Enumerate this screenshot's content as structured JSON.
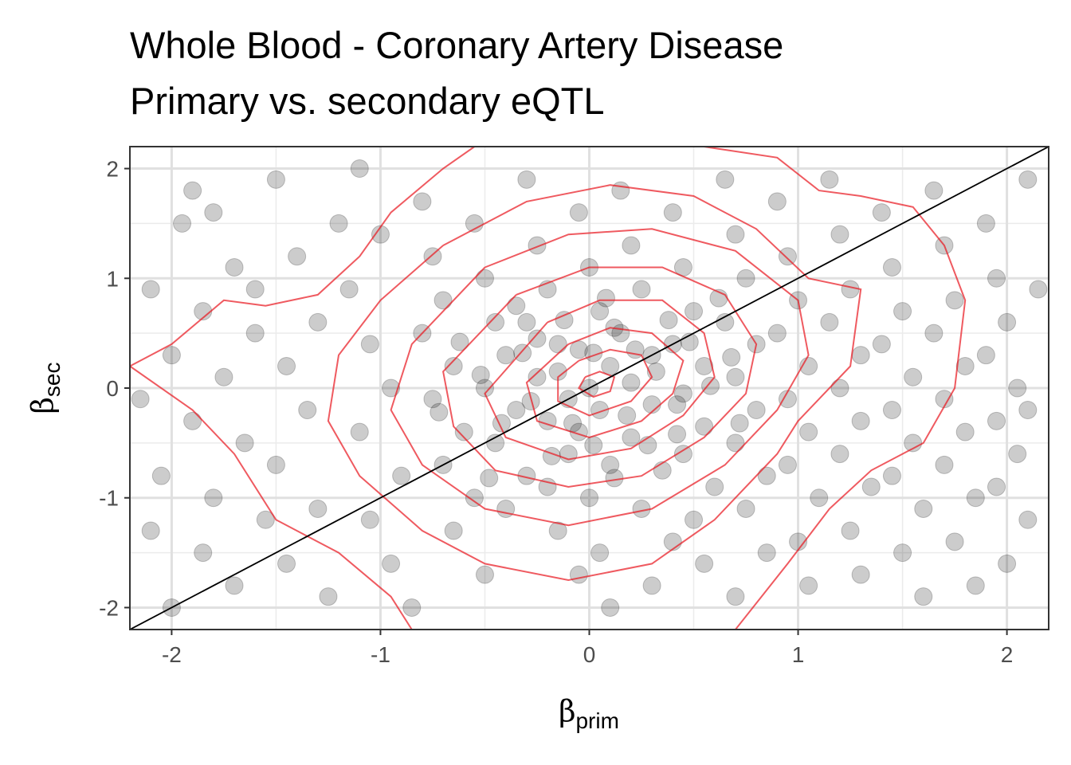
{
  "chart_data": {
    "type": "scatter",
    "title_lines": [
      "Whole Blood - Coronary Artery Disease",
      "Primary vs. secondary eQTL"
    ],
    "xlabel": {
      "symbol": "β",
      "subscript": "prim"
    },
    "ylabel": {
      "symbol": "β",
      "subscript": "sec"
    },
    "xlim": [
      -2.2,
      2.2
    ],
    "ylim": [
      -2.2,
      2.2
    ],
    "xticks": [
      -2,
      -1,
      0,
      1,
      2
    ],
    "yticks": [
      -2,
      -1,
      0,
      1,
      2
    ],
    "xtick_labels": [
      "-2",
      "-1",
      "0",
      "1",
      "2"
    ],
    "ytick_labels": [
      "-2",
      "-1",
      "0",
      "1",
      "2"
    ],
    "grid": true,
    "point_color": "#000000",
    "point_opacity": 0.2,
    "contour_color": "#e8141d",
    "reference_line": {
      "slope": 1,
      "intercept": 0,
      "color": "#000000"
    },
    "points": [
      [
        -1.9,
        1.8
      ],
      [
        -1.8,
        1.6
      ],
      [
        -1.95,
        1.5
      ],
      [
        -1.7,
        1.1
      ],
      [
        -2.1,
        0.9
      ],
      [
        -1.85,
        0.7
      ],
      [
        -1.6,
        0.5
      ],
      [
        -2.0,
        0.3
      ],
      [
        -1.75,
        0.1
      ],
      [
        -2.15,
        -0.1
      ],
      [
        -1.9,
        -0.3
      ],
      [
        -1.65,
        -0.5
      ],
      [
        -2.05,
        -0.8
      ],
      [
        -1.8,
        -1.0
      ],
      [
        -2.1,
        -1.3
      ],
      [
        -1.85,
        -1.5
      ],
      [
        -1.7,
        -1.8
      ],
      [
        -2.0,
        -2.0
      ],
      [
        -1.55,
        -1.2
      ],
      [
        -1.6,
        0.9
      ],
      [
        -1.5,
        1.9
      ],
      [
        -1.4,
        1.2
      ],
      [
        -1.3,
        0.6
      ],
      [
        -1.45,
        0.2
      ],
      [
        -1.35,
        -0.2
      ],
      [
        -1.5,
        -0.7
      ],
      [
        -1.3,
        -1.1
      ],
      [
        -1.45,
        -1.6
      ],
      [
        -1.25,
        -1.9
      ],
      [
        -1.2,
        1.5
      ],
      [
        -1.1,
        2.0
      ],
      [
        -1.0,
        1.4
      ],
      [
        -1.15,
        0.9
      ],
      [
        -1.05,
        0.4
      ],
      [
        -0.95,
        0.0
      ],
      [
        -1.1,
        -0.4
      ],
      [
        -0.9,
        -0.8
      ],
      [
        -1.05,
        -1.2
      ],
      [
        -0.95,
        -1.6
      ],
      [
        -0.85,
        -2.0
      ],
      [
        -0.8,
        1.7
      ],
      [
        -0.75,
        1.2
      ],
      [
        -0.7,
        0.8
      ],
      [
        -0.8,
        0.5
      ],
      [
        -0.65,
        0.2
      ],
      [
        -0.75,
        -0.1
      ],
      [
        -0.6,
        -0.4
      ],
      [
        -0.7,
        -0.7
      ],
      [
        -0.55,
        -1.0
      ],
      [
        -0.65,
        -1.3
      ],
      [
        -0.5,
        -1.7
      ],
      [
        -0.55,
        1.5
      ],
      [
        -0.5,
        1.0
      ],
      [
        -0.45,
        0.6
      ],
      [
        -0.4,
        0.3
      ],
      [
        -0.5,
        0.0
      ],
      [
        -0.35,
        -0.2
      ],
      [
        -0.45,
        -0.5
      ],
      [
        -0.3,
        -0.8
      ],
      [
        -0.4,
        -1.1
      ],
      [
        -0.3,
        1.9
      ],
      [
        -0.25,
        1.3
      ],
      [
        -0.2,
        0.9
      ],
      [
        -0.3,
        0.6
      ],
      [
        -0.15,
        0.4
      ],
      [
        -0.25,
        0.1
      ],
      [
        -0.1,
        -0.1
      ],
      [
        -0.2,
        -0.3
      ],
      [
        -0.1,
        -0.6
      ],
      [
        -0.2,
        -0.9
      ],
      [
        -0.15,
        -1.3
      ],
      [
        -0.05,
        -1.7
      ],
      [
        -0.05,
        1.6
      ],
      [
        0.0,
        1.1
      ],
      [
        0.05,
        0.7
      ],
      [
        -0.05,
        0.35
      ],
      [
        0.1,
        0.2
      ],
      [
        0.0,
        0.0
      ],
      [
        0.05,
        -0.2
      ],
      [
        -0.05,
        -0.4
      ],
      [
        0.1,
        -0.7
      ],
      [
        0.0,
        -1.0
      ],
      [
        0.05,
        -1.5
      ],
      [
        0.1,
        -2.0
      ],
      [
        0.15,
        1.8
      ],
      [
        0.2,
        1.3
      ],
      [
        0.25,
        0.9
      ],
      [
        0.15,
        0.5
      ],
      [
        0.3,
        0.3
      ],
      [
        0.2,
        0.05
      ],
      [
        0.3,
        -0.15
      ],
      [
        0.2,
        -0.45
      ],
      [
        0.35,
        -0.75
      ],
      [
        0.25,
        -1.1
      ],
      [
        0.4,
        -1.4
      ],
      [
        0.3,
        -1.8
      ],
      [
        0.4,
        1.6
      ],
      [
        0.45,
        1.1
      ],
      [
        0.5,
        0.7
      ],
      [
        0.4,
        0.4
      ],
      [
        0.55,
        0.2
      ],
      [
        0.45,
        -0.05
      ],
      [
        0.55,
        -0.35
      ],
      [
        0.45,
        -0.6
      ],
      [
        0.6,
        -0.9
      ],
      [
        0.5,
        -1.2
      ],
      [
        0.55,
        -1.6
      ],
      [
        0.65,
        1.9
      ],
      [
        0.7,
        1.4
      ],
      [
        0.75,
        1.0
      ],
      [
        0.65,
        0.6
      ],
      [
        0.8,
        0.4
      ],
      [
        0.7,
        0.1
      ],
      [
        0.8,
        -0.2
      ],
      [
        0.7,
        -0.5
      ],
      [
        0.85,
        -0.8
      ],
      [
        0.75,
        -1.1
      ],
      [
        0.85,
        -1.5
      ],
      [
        0.7,
        -1.9
      ],
      [
        0.9,
        1.7
      ],
      [
        0.95,
        1.2
      ],
      [
        1.0,
        0.8
      ],
      [
        0.9,
        0.5
      ],
      [
        1.05,
        0.2
      ],
      [
        0.95,
        -0.1
      ],
      [
        1.05,
        -0.4
      ],
      [
        0.95,
        -0.7
      ],
      [
        1.1,
        -1.0
      ],
      [
        1.0,
        -1.4
      ],
      [
        1.05,
        -1.8
      ],
      [
        1.15,
        1.9
      ],
      [
        1.2,
        1.4
      ],
      [
        1.25,
        0.9
      ],
      [
        1.15,
        0.6
      ],
      [
        1.3,
        0.3
      ],
      [
        1.2,
        0.0
      ],
      [
        1.3,
        -0.3
      ],
      [
        1.2,
        -0.6
      ],
      [
        1.35,
        -0.9
      ],
      [
        1.25,
        -1.3
      ],
      [
        1.3,
        -1.7
      ],
      [
        1.4,
        1.6
      ],
      [
        1.45,
        1.1
      ],
      [
        1.5,
        0.7
      ],
      [
        1.4,
        0.4
      ],
      [
        1.55,
        0.1
      ],
      [
        1.45,
        -0.2
      ],
      [
        1.55,
        -0.5
      ],
      [
        1.45,
        -0.8
      ],
      [
        1.6,
        -1.1
      ],
      [
        1.5,
        -1.5
      ],
      [
        1.6,
        -1.9
      ],
      [
        1.65,
        1.8
      ],
      [
        1.7,
        1.3
      ],
      [
        1.75,
        0.8
      ],
      [
        1.65,
        0.5
      ],
      [
        1.8,
        0.2
      ],
      [
        1.7,
        -0.1
      ],
      [
        1.8,
        -0.4
      ],
      [
        1.7,
        -0.7
      ],
      [
        1.85,
        -1.0
      ],
      [
        1.75,
        -1.4
      ],
      [
        1.85,
        -1.8
      ],
      [
        1.9,
        1.5
      ],
      [
        1.95,
        1.0
      ],
      [
        2.0,
        0.6
      ],
      [
        1.9,
        0.3
      ],
      [
        2.05,
        0.0
      ],
      [
        1.95,
        -0.3
      ],
      [
        2.05,
        -0.6
      ],
      [
        1.95,
        -0.9
      ],
      [
        2.1,
        -1.2
      ],
      [
        2.0,
        -1.6
      ],
      [
        2.1,
        1.9
      ],
      [
        2.15,
        0.9
      ],
      [
        2.1,
        -0.2
      ],
      [
        -0.35,
        0.75
      ],
      [
        -0.25,
        0.45
      ],
      [
        -0.15,
        0.15
      ],
      [
        0.12,
        0.55
      ],
      [
        0.22,
        0.35
      ],
      [
        0.32,
        0.15
      ],
      [
        0.42,
        -0.15
      ],
      [
        0.18,
        -0.25
      ],
      [
        -0.08,
        -0.32
      ],
      [
        -0.28,
        -0.12
      ],
      [
        0.38,
        0.62
      ],
      [
        0.48,
        0.42
      ],
      [
        0.58,
        0.02
      ],
      [
        0.28,
        -0.52
      ],
      [
        -0.18,
        -0.62
      ],
      [
        -0.42,
        -0.32
      ],
      [
        -0.52,
        0.12
      ],
      [
        -0.32,
        0.32
      ],
      [
        0.08,
        0.82
      ],
      [
        0.62,
        0.82
      ],
      [
        -0.62,
        0.42
      ],
      [
        -0.72,
        -0.22
      ],
      [
        -0.48,
        -0.82
      ],
      [
        0.12,
        -0.82
      ],
      [
        0.42,
        -0.42
      ],
      [
        0.72,
        -0.32
      ],
      [
        0.68,
        0.28
      ],
      [
        -0.12,
        0.62
      ],
      [
        0.02,
        0.32
      ],
      [
        0.02,
        -0.52
      ]
    ],
    "contours": [
      [
        [
          -2.2,
          0.2
        ],
        [
          -2.0,
          0.4
        ],
        [
          -1.75,
          0.8
        ],
        [
          -1.55,
          0.75
        ],
        [
          -1.3,
          0.85
        ],
        [
          -1.1,
          1.2
        ],
        [
          -0.95,
          1.6
        ],
        [
          -0.7,
          2.0
        ],
        [
          -0.55,
          2.2
        ]
      ],
      [
        [
          0.55,
          2.2
        ],
        [
          0.9,
          2.1
        ],
        [
          1.1,
          1.8
        ],
        [
          1.3,
          1.75
        ],
        [
          1.55,
          1.65
        ],
        [
          1.7,
          1.3
        ],
        [
          1.8,
          0.8
        ],
        [
          1.75,
          0.0
        ],
        [
          1.6,
          -0.5
        ],
        [
          1.35,
          -0.75
        ],
        [
          1.15,
          -1.1
        ],
        [
          0.95,
          -1.6
        ],
        [
          0.7,
          -2.2
        ]
      ],
      [
        [
          -0.85,
          -2.2
        ],
        [
          -0.95,
          -1.9
        ],
        [
          -1.2,
          -1.5
        ],
        [
          -1.5,
          -1.2
        ],
        [
          -1.7,
          -0.6
        ],
        [
          -1.9,
          -0.2
        ],
        [
          -2.2,
          0.2
        ]
      ],
      [
        [
          -0.7,
          1.3
        ],
        [
          -0.3,
          1.7
        ],
        [
          0.1,
          1.85
        ],
        [
          0.5,
          1.75
        ],
        [
          0.8,
          1.45
        ],
        [
          1.05,
          1.0
        ],
        [
          1.3,
          0.9
        ],
        [
          1.25,
          0.2
        ],
        [
          1.0,
          -0.3
        ],
        [
          0.9,
          -0.6
        ],
        [
          0.6,
          -1.2
        ],
        [
          0.3,
          -1.6
        ],
        [
          -0.1,
          -1.75
        ],
        [
          -0.5,
          -1.6
        ],
        [
          -0.8,
          -1.3
        ],
        [
          -1.1,
          -0.8
        ],
        [
          -1.25,
          -0.3
        ],
        [
          -1.2,
          0.3
        ],
        [
          -1.0,
          0.8
        ],
        [
          -0.7,
          1.3
        ]
      ],
      [
        [
          -0.5,
          1.1
        ],
        [
          -0.1,
          1.4
        ],
        [
          0.3,
          1.45
        ],
        [
          0.7,
          1.25
        ],
        [
          1.0,
          0.8
        ],
        [
          1.05,
          0.3
        ],
        [
          0.9,
          -0.2
        ],
        [
          0.65,
          -0.7
        ],
        [
          0.3,
          -1.1
        ],
        [
          -0.1,
          -1.25
        ],
        [
          -0.5,
          -1.1
        ],
        [
          -0.8,
          -0.7
        ],
        [
          -0.95,
          -0.2
        ],
        [
          -0.85,
          0.4
        ],
        [
          -0.5,
          1.1
        ]
      ],
      [
        [
          -0.35,
          0.85
        ],
        [
          0.0,
          1.1
        ],
        [
          0.35,
          1.1
        ],
        [
          0.65,
          0.85
        ],
        [
          0.8,
          0.4
        ],
        [
          0.75,
          -0.05
        ],
        [
          0.55,
          -0.45
        ],
        [
          0.25,
          -0.8
        ],
        [
          -0.1,
          -0.9
        ],
        [
          -0.45,
          -0.75
        ],
        [
          -0.65,
          -0.35
        ],
        [
          -0.7,
          0.15
        ],
        [
          -0.35,
          0.85
        ]
      ],
      [
        [
          -0.2,
          0.6
        ],
        [
          0.05,
          0.8
        ],
        [
          0.35,
          0.8
        ],
        [
          0.55,
          0.5
        ],
        [
          0.6,
          0.1
        ],
        [
          0.45,
          -0.25
        ],
        [
          0.2,
          -0.55
        ],
        [
          -0.1,
          -0.65
        ],
        [
          -0.4,
          -0.45
        ],
        [
          -0.5,
          -0.05
        ],
        [
          -0.2,
          0.6
        ]
      ],
      [
        [
          -0.1,
          0.4
        ],
        [
          0.1,
          0.55
        ],
        [
          0.3,
          0.5
        ],
        [
          0.45,
          0.25
        ],
        [
          0.4,
          -0.05
        ],
        [
          0.25,
          -0.3
        ],
        [
          0.0,
          -0.45
        ],
        [
          -0.25,
          -0.3
        ],
        [
          -0.3,
          0.05
        ],
        [
          -0.1,
          0.4
        ]
      ],
      [
        [
          -0.05,
          0.25
        ],
        [
          0.1,
          0.35
        ],
        [
          0.25,
          0.3
        ],
        [
          0.3,
          0.1
        ],
        [
          0.2,
          -0.12
        ],
        [
          0.0,
          -0.25
        ],
        [
          -0.15,
          -0.12
        ],
        [
          -0.15,
          0.1
        ],
        [
          -0.05,
          0.25
        ]
      ],
      [
        [
          -0.02,
          0.1
        ],
        [
          0.05,
          0.15
        ],
        [
          0.12,
          0.1
        ],
        [
          0.1,
          -0.03
        ],
        [
          0.02,
          -0.08
        ],
        [
          -0.05,
          0.0
        ],
        [
          -0.02,
          0.1
        ]
      ]
    ]
  }
}
